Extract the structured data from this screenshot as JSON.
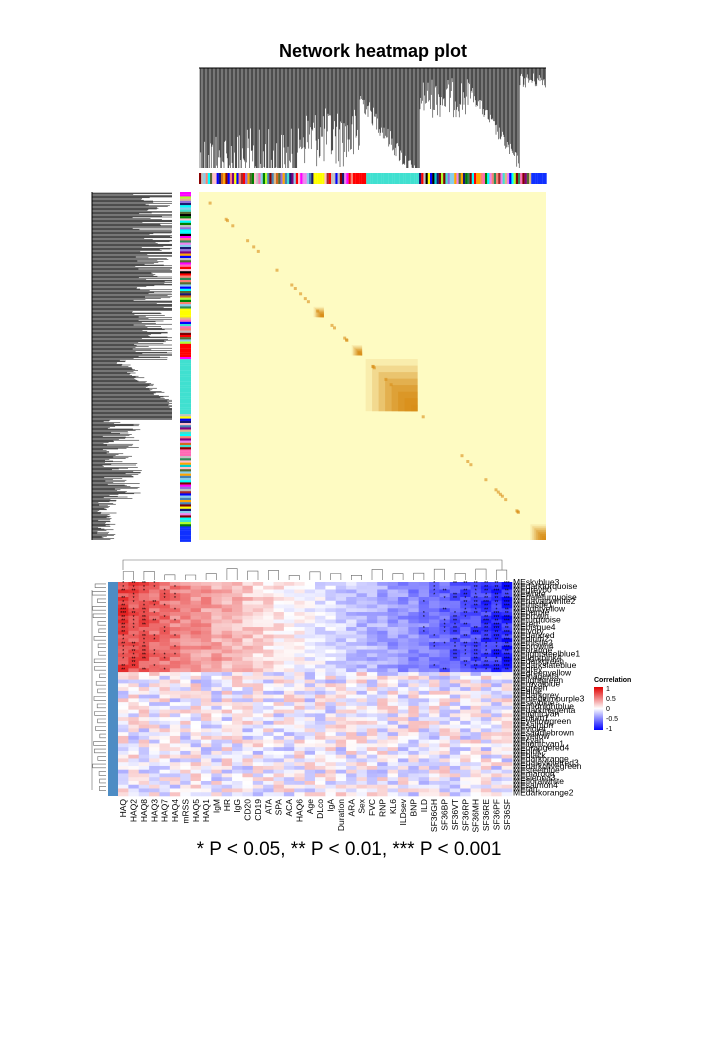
{
  "figure": {
    "title": "Network heatmap plot",
    "footnote": "* P < 0.05, ** P < 0.01, *** P < 0.001"
  },
  "colors": {
    "tom_background": "#fefbc2",
    "tom_high": "#d98e18",
    "corr_low": "#0000ff",
    "corr_mid": "#ffffff",
    "corr_high": "#e00000"
  },
  "chart_data": [
    {
      "type": "heatmap",
      "title": "Network heatmap plot",
      "module_blocks": [
        {
          "name": "turquoise",
          "color": "#40e0d0",
          "start": 0.48,
          "end": 0.63
        },
        {
          "name": "blue",
          "color": "#1030ff",
          "start": 0.955,
          "end": 1.0
        },
        {
          "name": "yellow",
          "color": "#ffff00",
          "start": 0.33,
          "end": 0.36
        },
        {
          "name": "red",
          "color": "#ff0000",
          "start": 0.44,
          "end": 0.47
        }
      ]
    },
    {
      "type": "heatmap",
      "legend": {
        "title": "Correlation",
        "ticks": [
          "1",
          "0.5",
          "0",
          "-0.5",
          "-1"
        ],
        "range": [
          -1,
          1
        ]
      },
      "columns": [
        "HAQ",
        "HAQ2",
        "HAQ8",
        "HAQ3",
        "HAQ7",
        "HAQ4",
        "mRSS",
        "HAQ5",
        "HAQ1",
        "IgM",
        "HR",
        "IgG",
        "CD20",
        "CD19",
        "ATA",
        "SPA",
        "ACA",
        "HAQ6",
        "Age",
        "DLco",
        "IgA",
        "Duration",
        "ARA",
        "Sex",
        "FVC",
        "RNP",
        "KL6",
        "ILDsev",
        "BNP",
        "ILD",
        "SF36GH",
        "SF36BP",
        "SF36VT",
        "SF36RP",
        "SF36MH",
        "SF36RE",
        "SF36PF",
        "SF36SF"
      ],
      "rows": [
        "MEskyblue3",
        "MEdarkturquoise",
        "MEgrey60",
        "MEwhite",
        "MEpaleturquoise",
        "MEnavajowhite2",
        "MEthistle1",
        "MElightyellow",
        "MEpurple",
        "MEbrown",
        "MEturquoise",
        "MEred",
        "MEbisque4",
        "MEivory",
        "MEdarkred",
        "MEplum2",
        "MEthistle2",
        "MEbrown4",
        "MEorange",
        "MElightsteelblue1",
        "MElightpink4",
        "MEdarkgreen",
        "MEdarkslateblue",
        "MEgrey",
        "MEgreenyellow",
        "MEmagenta",
        "MElightgreen",
        "MEroyalblue",
        "MEgreen",
        "MEblue",
        "MEdarkgrey",
        "MEmediumpurple3",
        "MEskyblue",
        "MEmidnightblue",
        "MEdarkmagenta",
        "MElightcyan",
        "MEplum1",
        "MEyellowgreen",
        "MEsalmon",
        "MEviolet",
        "MEsaddlebrown",
        "MEyellow",
        "MEcyan",
        "MElightcyan1",
        "MEorangered4",
        "MEpink",
        "MEblack",
        "MEdarkorange",
        "MEpalevioletred3",
        "MEdarkolivegreen",
        "MEsteelblue",
        "MEmaroon",
        "MEsienna3",
        "MEfloralwhite",
        "MEsalmon4",
        "MEtan",
        "MEdarkorange2"
      ],
      "significance_note": "* P < 0.05, ** P < 0.01, *** P < 0.001"
    }
  ]
}
